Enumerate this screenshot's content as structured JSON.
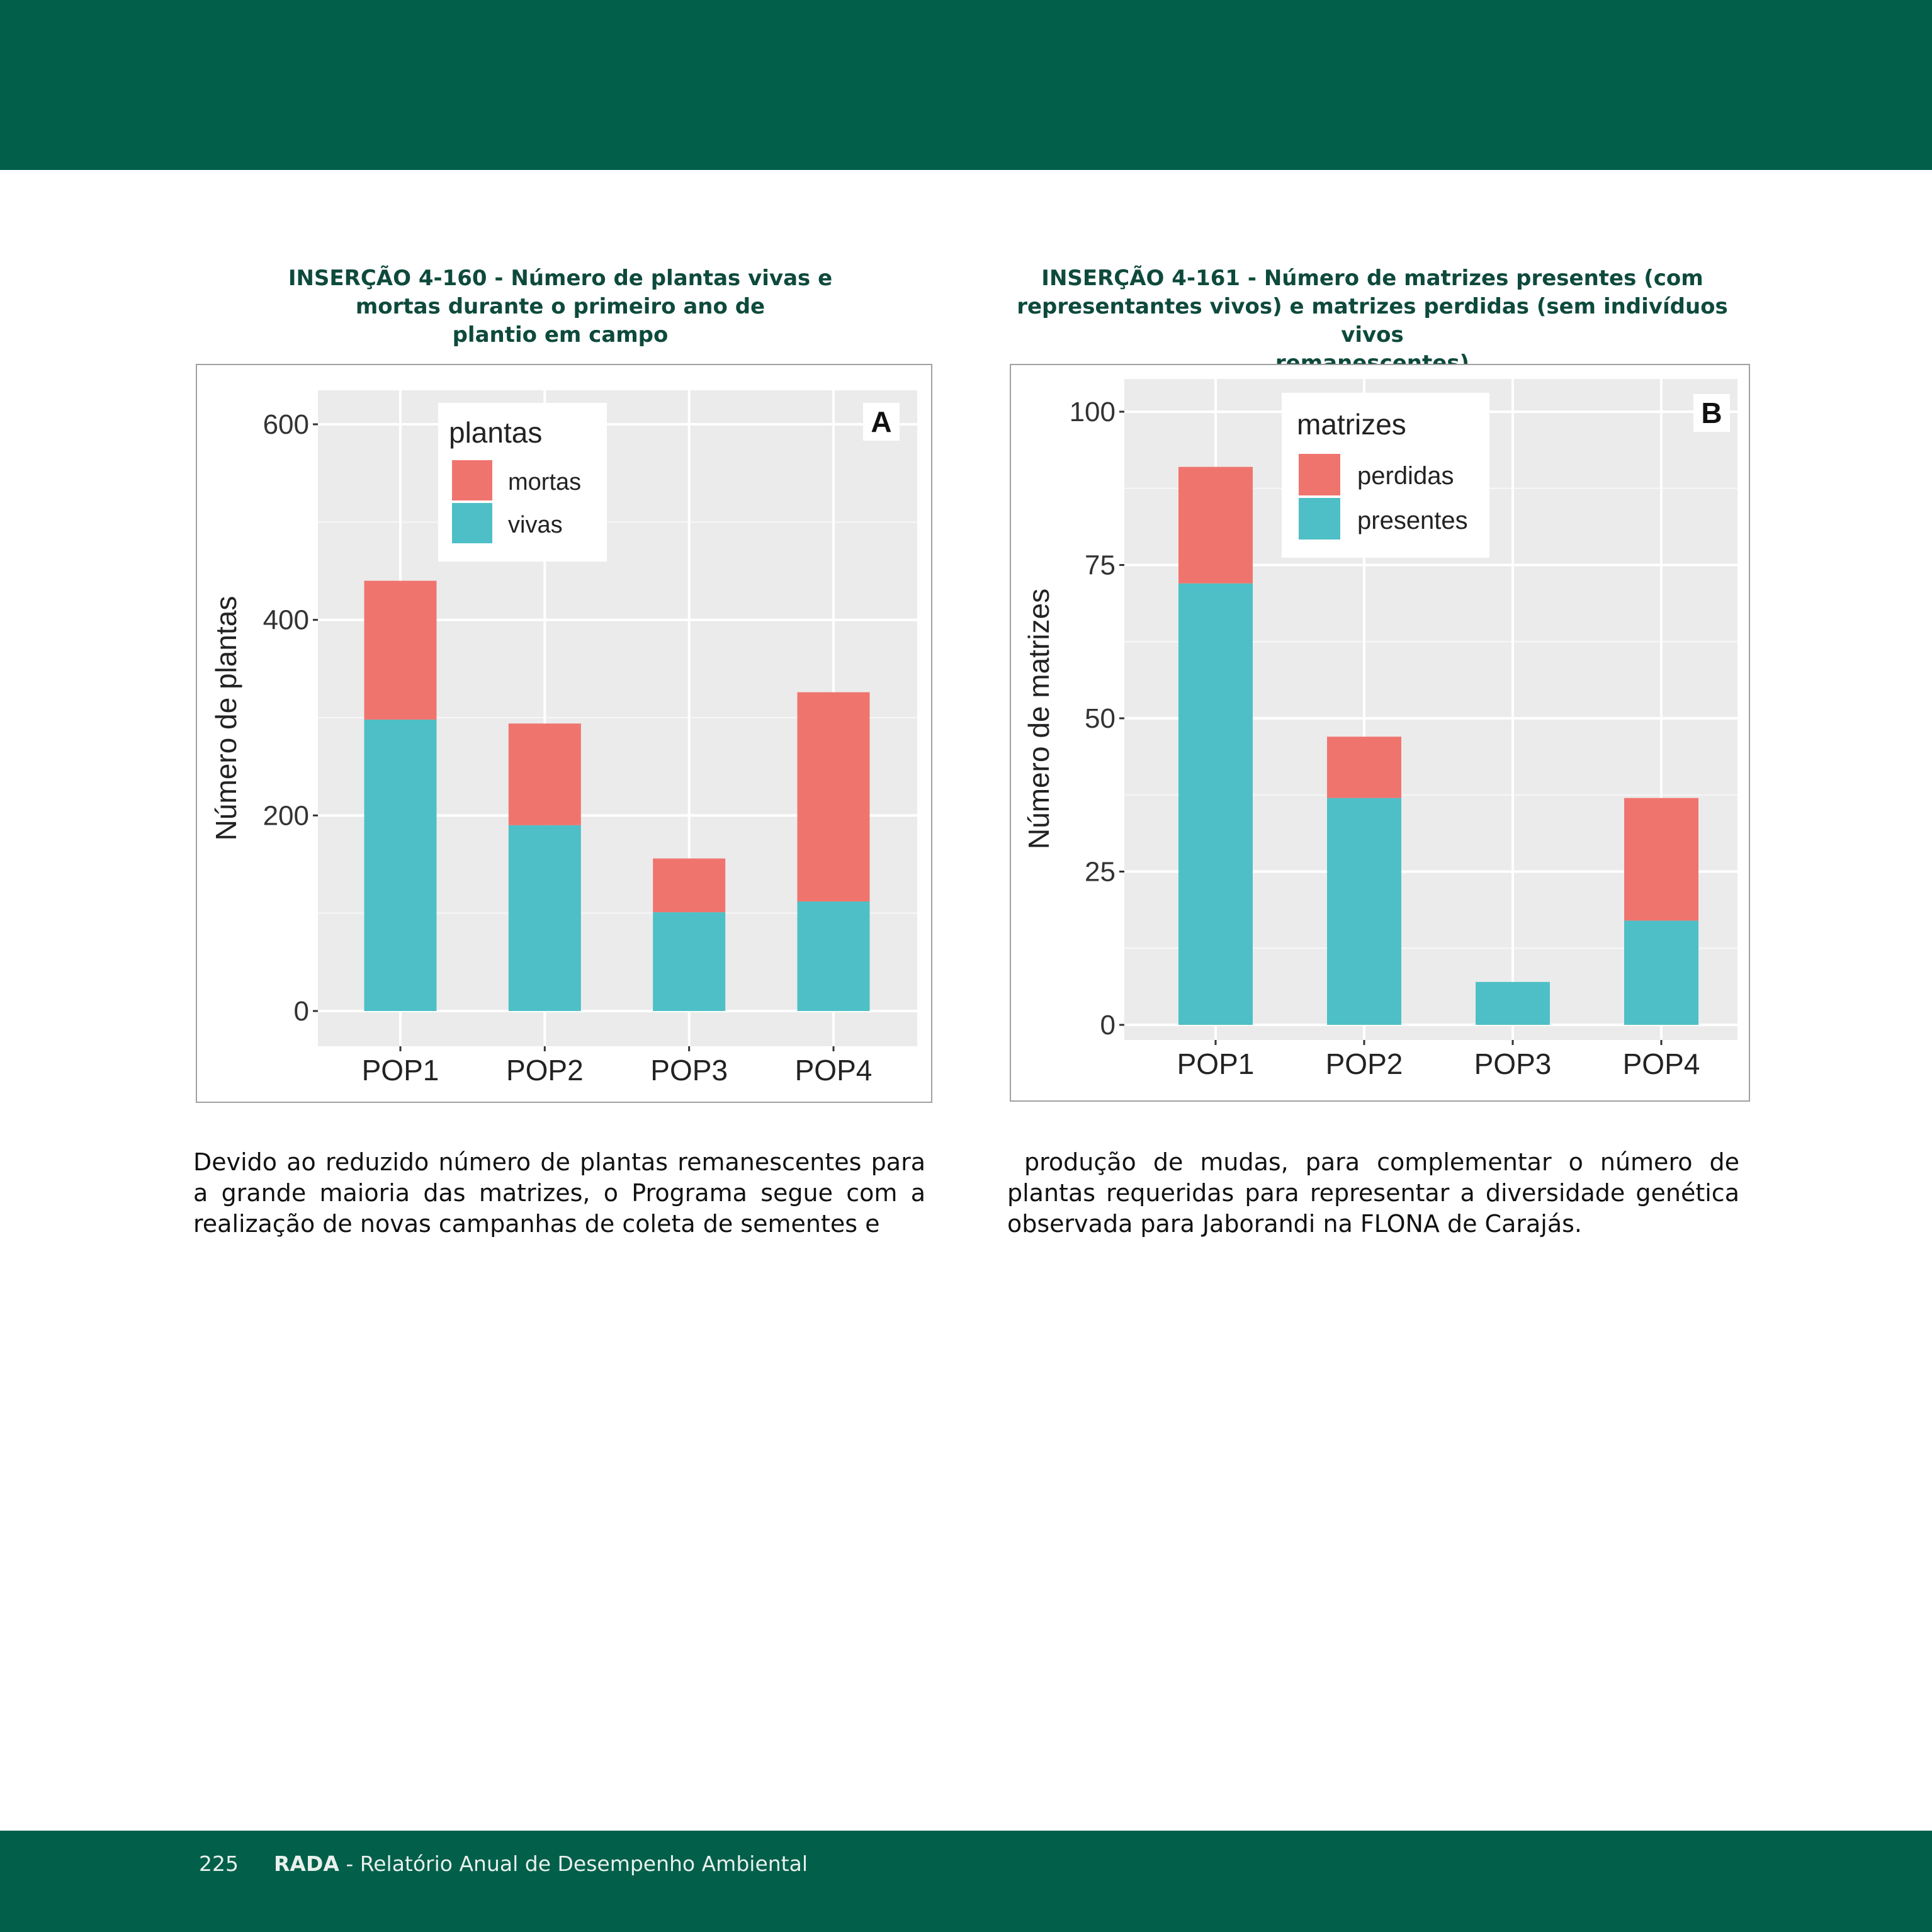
{
  "header": {},
  "figures": [
    {
      "caption_lines": [
        "INSERÇÃO 4-160 - Número de plantas vivas e",
        "mortas durante o primeiro ano de",
        "plantio em campo"
      ],
      "panel_label": "A",
      "ylabel": "Número de plantas",
      "legend_title": "plantas",
      "legend_items": [
        "mortas",
        "vivas"
      ],
      "colors": {
        "top": "#f0746e",
        "bottom": "#4ebfc6"
      }
    },
    {
      "caption_lines": [
        "INSERÇÃO 4-161 - Número de matrizes presentes (com",
        "representantes vivos) e matrizes perdidas (sem indivíduos vivos",
        "remanescentes)"
      ],
      "panel_label": "B",
      "ylabel": "Número de matrizes",
      "legend_title": "matrizes",
      "legend_items": [
        "perdidas",
        "presentes"
      ],
      "colors": {
        "top": "#f0746e",
        "bottom": "#4ebfc6"
      }
    }
  ],
  "chart_data": [
    {
      "type": "bar",
      "stacked": true,
      "categories": [
        "POP1",
        "POP2",
        "POP3",
        "POP4"
      ],
      "series": [
        {
          "name": "vivas",
          "values": [
            298,
            190,
            101,
            112
          ]
        },
        {
          "name": "mortas",
          "values": [
            142,
            104,
            55,
            214
          ]
        }
      ],
      "ylim": [
        0,
        600
      ],
      "yticks": [
        0,
        200,
        400,
        600
      ],
      "title": "",
      "xlabel": "",
      "ylabel": "Número de plantas",
      "legend_title": "plantas",
      "legend_position": "top-left",
      "grid": true
    },
    {
      "type": "bar",
      "stacked": true,
      "categories": [
        "POP1",
        "POP2",
        "POP3",
        "POP4"
      ],
      "series": [
        {
          "name": "presentes",
          "values": [
            72,
            37,
            7,
            17
          ]
        },
        {
          "name": "perdidas",
          "values": [
            19,
            10,
            0,
            20
          ]
        }
      ],
      "ylim": [
        0,
        100
      ],
      "yticks": [
        0,
        25,
        50,
        75,
        100
      ],
      "title": "",
      "xlabel": "",
      "ylabel": "Número de matrizes",
      "legend_title": "matrizes",
      "legend_position": "top-left",
      "grid": true
    }
  ],
  "body_text": {
    "left_lines": [
      "Devido ao reduzido número de plantas remanescentes para",
      "a grande maioria das matrizes, o Programa segue com a",
      "realização de novas campanhas de coleta de sementes e"
    ],
    "right_lines": [
      " produção de mudas, para complementar o número de",
      "plantas requeridas para representar a diversidade genética",
      "observada para Jaborandi na FLONA de Carajás."
    ]
  },
  "footer": {
    "page_number": "225",
    "brand": "RADA",
    "title": " - Relatório Anual de Desempenho Ambiental"
  }
}
